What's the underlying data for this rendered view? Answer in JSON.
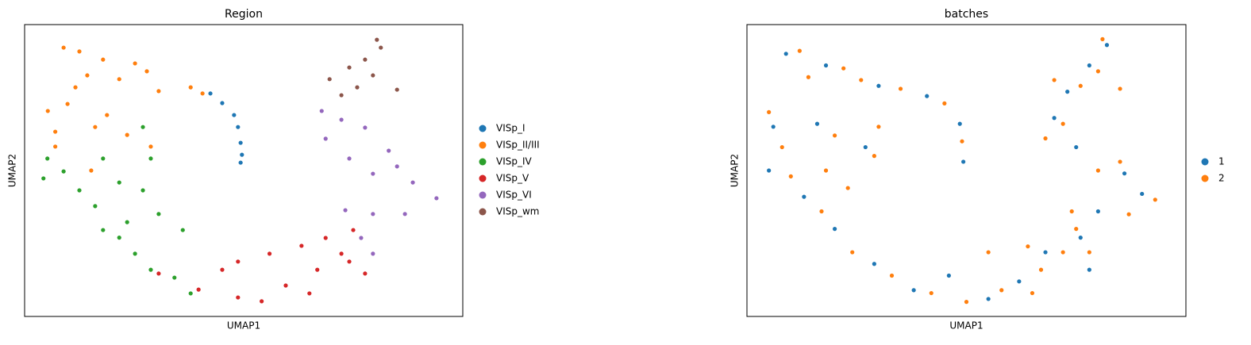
{
  "chart_data": [
    {
      "type": "scatter",
      "title": "Region",
      "xlabel": "UMAP1",
      "ylabel": "UMAP2",
      "xlim": [
        0,
        100
      ],
      "ylim": [
        0,
        100
      ],
      "series": [
        {
          "name": "VISp_I",
          "color": "#1f77b4",
          "x": [
            42.4,
            45.1,
            47.8,
            48.7,
            49.3,
            49.6,
            49.3
          ],
          "y": [
            76.4,
            73.1,
            69,
            64.9,
            59.5,
            55.4,
            52.7
          ]
        },
        {
          "name": "VISp_II/III",
          "color": "#ff7f0e",
          "x": [
            8.9,
            12.5,
            17.9,
            25.2,
            27.9,
            21.6,
            14.3,
            11.6,
            30.6,
            37.9,
            40.6,
            5.3,
            7,
            7,
            16.1,
            18.8,
            23.4,
            28.8,
            15.2,
            9.8
          ],
          "y": [
            92.1,
            90.8,
            88,
            86.7,
            84,
            81.3,
            82.6,
            78.5,
            77.2,
            78.5,
            76.4,
            70.4,
            63.3,
            58.2,
            64.9,
            69,
            62.2,
            58.2,
            50,
            72.8
          ]
        },
        {
          "name": "VISp_IV",
          "color": "#2ca02c",
          "x": [
            5.2,
            4.3,
            8.9,
            12.5,
            16.1,
            17.9,
            21.6,
            25.2,
            28.8,
            34.2,
            37.9,
            27,
            28.8,
            27,
            30.6,
            36.1,
            23.4,
            21.6,
            17.9
          ],
          "y": [
            54.1,
            47.3,
            49.7,
            43.2,
            37.8,
            29.6,
            27,
            21.5,
            16,
            13.3,
            7.9,
            64.9,
            54.1,
            43.2,
            35.1,
            29.6,
            32.3,
            45.9,
            54.1
          ]
        },
        {
          "name": "VISp_V",
          "color": "#d62728",
          "x": [
            30.6,
            39.7,
            45.1,
            48.7,
            54.1,
            59.6,
            65,
            66.8,
            68.7,
            63.2,
            55.9,
            48.7,
            72.3,
            75,
            77.7,
            74.1
          ],
          "y": [
            14.7,
            9.2,
            16,
            6.5,
            5.2,
            10.6,
            7.9,
            16,
            26.9,
            24.2,
            21.5,
            18.8,
            21.5,
            29.6,
            14.7,
            18.8
          ]
        },
        {
          "name": "VISp_VI",
          "color": "#9467bd",
          "x": [
            67.8,
            68.7,
            72.3,
            77.7,
            74.1,
            79.5,
            85,
            88.6,
            94,
            86.8,
            79.5,
            73.2,
            76.8,
            79.5,
            83.1
          ],
          "y": [
            70.4,
            60.9,
            67.4,
            64.7,
            54.1,
            48.9,
            51.4,
            45.9,
            40.5,
            35.1,
            35.1,
            36.4,
            26.9,
            21.5,
            56.8
          ]
        },
        {
          "name": "VISp_wm",
          "color": "#8c564b",
          "x": [
            69.6,
            72.3,
            75.9,
            79.5,
            81.3,
            80.4,
            77.7,
            85,
            74.1
          ],
          "y": [
            81.3,
            75.8,
            78.5,
            82.6,
            92.1,
            94.8,
            88,
            77.7,
            85.3
          ]
        }
      ]
    },
    {
      "type": "scatter",
      "title": "batches",
      "xlabel": "UMAP1",
      "ylabel": "UMAP2",
      "xlim": [
        0,
        100
      ],
      "ylim": [
        0,
        100
      ],
      "series": [
        {
          "name": "1",
          "color": "#1f77b4",
          "x": [
            8.9,
            18,
            30,
            41,
            48.5,
            49.3,
            6,
            16,
            27,
            5,
            13,
            20,
            29,
            38,
            46,
            55,
            62,
            68,
            76,
            78,
            70,
            75,
            86,
            90,
            80,
            78,
            82,
            73
          ],
          "y": [
            90,
            86,
            79,
            75.5,
            66,
            53,
            65,
            66,
            58,
            50,
            41,
            30,
            18,
            9,
            14,
            6,
            12,
            22,
            27,
            16,
            68,
            58,
            49,
            42,
            36,
            86,
            93,
            77
          ]
        },
        {
          "name": "2",
          "color": "#ff7f0e",
          "x": [
            12,
            22,
            26,
            14,
            35,
            45,
            49,
            5,
            8,
            20,
            29,
            10,
            17,
            24,
            33,
            42,
            50,
            58,
            65,
            67,
            72,
            75,
            64,
            55,
            68,
            72,
            80,
            85,
            93,
            87,
            74,
            78,
            70,
            76,
            80,
            85,
            81,
            30,
            18,
            23
          ],
          "y": [
            91,
            85,
            81,
            82,
            78,
            73,
            60,
            70,
            58,
            62,
            55,
            48,
            36,
            22,
            14,
            8,
            5,
            9,
            8,
            16,
            22,
            30,
            24,
            22,
            61,
            66,
            50,
            53,
            40,
            35,
            36,
            22,
            81,
            79,
            84,
            78,
            95,
            65,
            50,
            44
          ]
        }
      ]
    }
  ]
}
